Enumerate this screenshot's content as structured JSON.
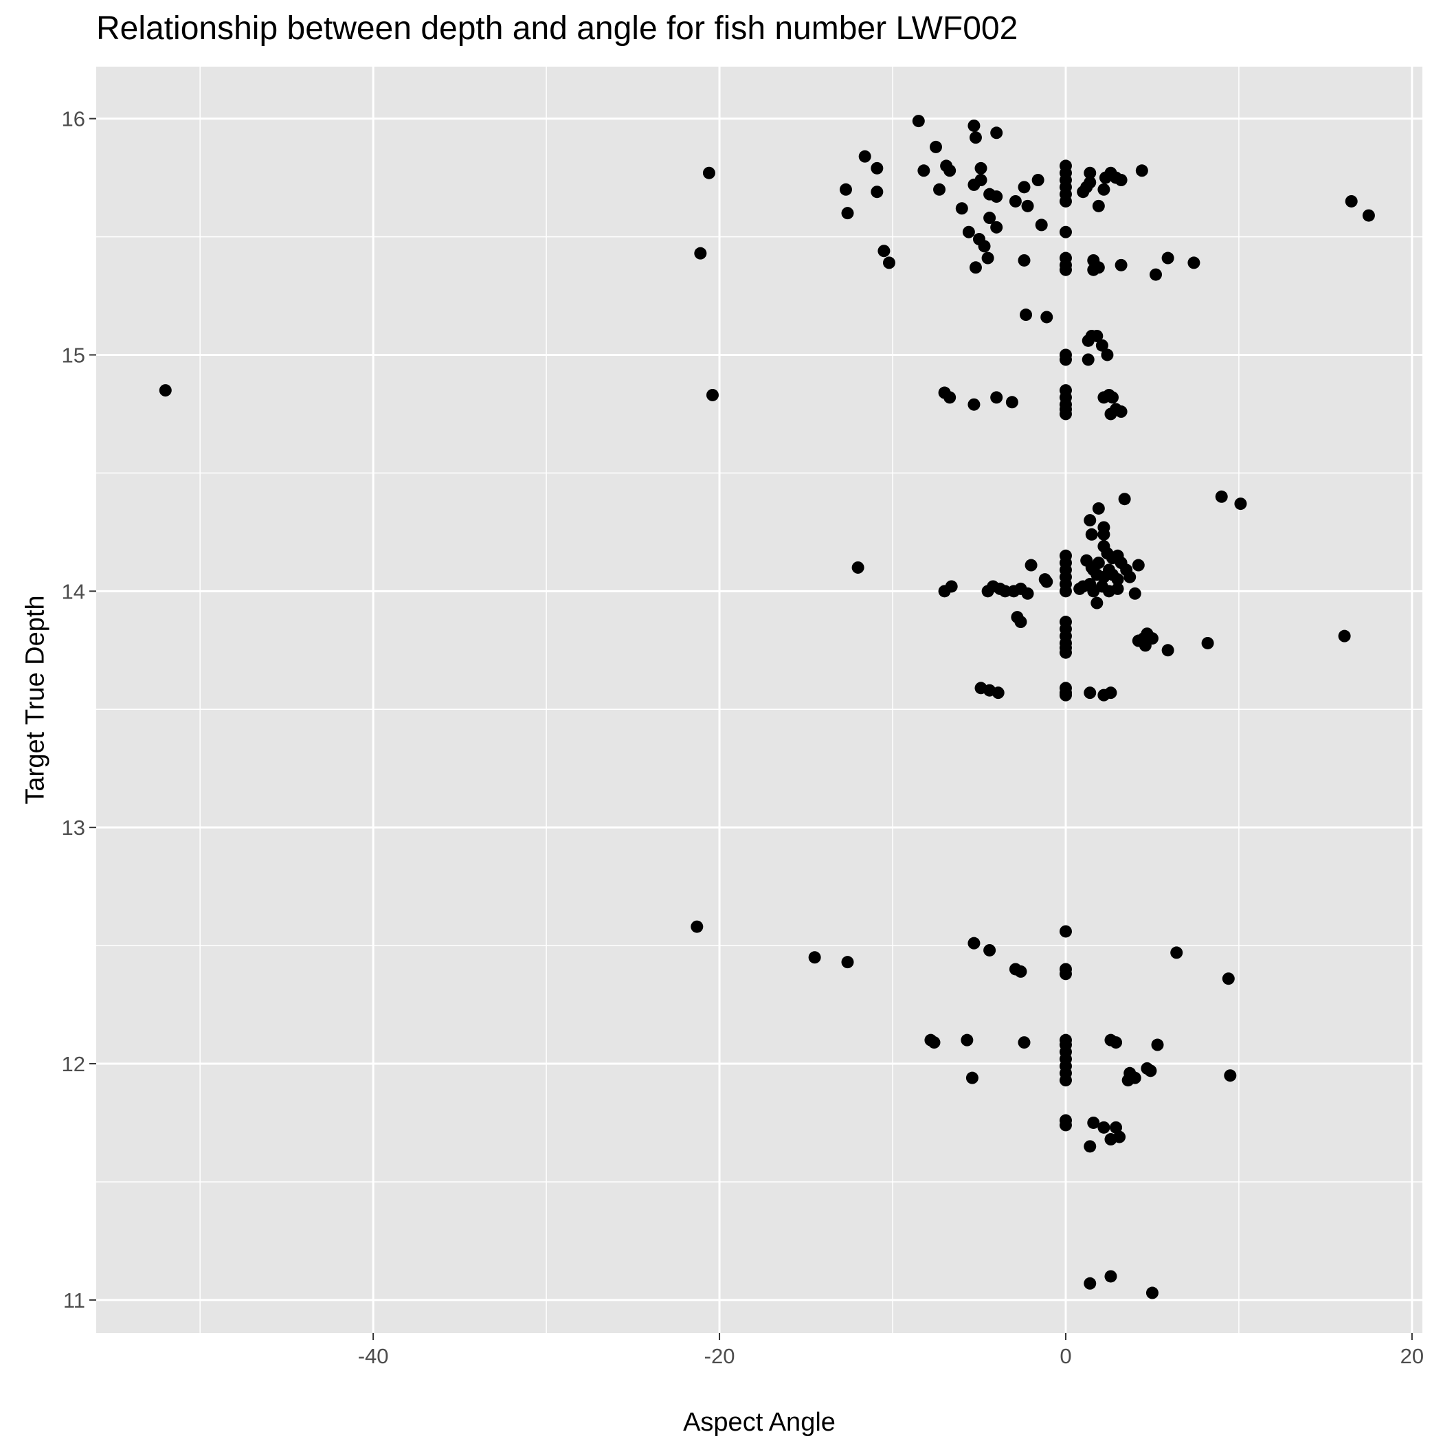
{
  "chart_data": {
    "type": "scatter",
    "title": "Relationship between depth and angle for fish number LWF002",
    "xlabel": "Aspect Angle",
    "ylabel": "Target True Depth",
    "xlim": [
      -56,
      20.6
    ],
    "ylim": [
      10.86,
      16.22
    ],
    "x_ticks": [
      "-40",
      "-20",
      "0",
      "20"
    ],
    "y_ticks": [
      "11",
      "12",
      "13",
      "14",
      "15",
      "16"
    ],
    "grid": true,
    "colors": {
      "panel": "#e5e5e5",
      "grid": "#ffffff",
      "point": "#000000"
    },
    "series": [
      {
        "points": [
          [
            -8.5,
            15.99
          ],
          [
            -5.3,
            15.97
          ],
          [
            -5.2,
            15.92
          ],
          [
            -4.0,
            15.94
          ],
          [
            -7.5,
            15.88
          ],
          [
            -11.6,
            15.84
          ],
          [
            -6.9,
            15.8
          ],
          [
            -6.7,
            15.78
          ],
          [
            -4.9,
            15.79
          ],
          [
            -8.2,
            15.78
          ],
          [
            -10.9,
            15.79
          ],
          [
            -20.6,
            15.77
          ],
          [
            -12.7,
            15.7
          ],
          [
            -10.9,
            15.69
          ],
          [
            -7.3,
            15.7
          ],
          [
            -5.3,
            15.72
          ],
          [
            -4.9,
            15.74
          ],
          [
            -4.4,
            15.68
          ],
          [
            -4.0,
            15.67
          ],
          [
            -2.4,
            15.71
          ],
          [
            -1.6,
            15.74
          ],
          [
            -2.9,
            15.65
          ],
          [
            -6.0,
            15.62
          ],
          [
            -2.2,
            15.63
          ],
          [
            -12.6,
            15.6
          ],
          [
            -4.4,
            15.58
          ],
          [
            -4.0,
            15.54
          ],
          [
            -1.4,
            15.55
          ],
          [
            -5.6,
            15.52
          ],
          [
            -5.0,
            15.49
          ],
          [
            -4.7,
            15.46
          ],
          [
            -4.5,
            15.41
          ],
          [
            -10.5,
            15.44
          ],
          [
            -10.2,
            15.39
          ],
          [
            -21.1,
            15.43
          ],
          [
            -5.2,
            15.37
          ],
          [
            -2.4,
            15.4
          ],
          [
            0,
            15.8
          ],
          [
            0,
            15.77
          ],
          [
            0,
            15.74
          ],
          [
            0,
            15.71
          ],
          [
            0,
            15.68
          ],
          [
            0,
            15.65
          ],
          [
            0,
            15.52
          ],
          [
            0,
            15.41
          ],
          [
            0,
            15.38
          ],
          [
            0,
            15.36
          ],
          [
            1.0,
            15.69
          ],
          [
            1.2,
            15.71
          ],
          [
            1.4,
            15.73
          ],
          [
            1.4,
            15.77
          ],
          [
            2.2,
            15.7
          ],
          [
            1.9,
            15.63
          ],
          [
            2.3,
            15.75
          ],
          [
            2.6,
            15.77
          ],
          [
            2.9,
            15.75
          ],
          [
            3.2,
            15.74
          ],
          [
            4.4,
            15.78
          ],
          [
            1.6,
            15.36
          ],
          [
            1.6,
            15.4
          ],
          [
            1.9,
            15.37
          ],
          [
            3.2,
            15.38
          ],
          [
            5.2,
            15.34
          ],
          [
            5.9,
            15.41
          ],
          [
            7.4,
            15.39
          ],
          [
            16.5,
            15.65
          ],
          [
            17.5,
            15.59
          ],
          [
            -2.3,
            15.17
          ],
          [
            -1.1,
            15.16
          ],
          [
            1.3,
            15.06
          ],
          [
            1.5,
            15.08
          ],
          [
            1.8,
            15.08
          ],
          [
            2.1,
            15.04
          ],
          [
            2.4,
            15.0
          ],
          [
            0,
            15.0
          ],
          [
            0,
            14.98
          ],
          [
            1.3,
            14.98
          ],
          [
            -52.0,
            14.85
          ],
          [
            -20.4,
            14.83
          ],
          [
            -7.0,
            14.84
          ],
          [
            -6.7,
            14.82
          ],
          [
            -5.3,
            14.79
          ],
          [
            -4.0,
            14.82
          ],
          [
            -3.1,
            14.8
          ],
          [
            0,
            14.85
          ],
          [
            0,
            14.82
          ],
          [
            0,
            14.79
          ],
          [
            0,
            14.77
          ],
          [
            0,
            14.75
          ],
          [
            2.2,
            14.82
          ],
          [
            2.5,
            14.83
          ],
          [
            2.7,
            14.82
          ],
          [
            2.6,
            14.75
          ],
          [
            2.9,
            14.77
          ],
          [
            3.2,
            14.76
          ],
          [
            3.4,
            14.39
          ],
          [
            9.0,
            14.4
          ],
          [
            10.1,
            14.37
          ],
          [
            1.9,
            14.35
          ],
          [
            1.4,
            14.3
          ],
          [
            2.2,
            14.27
          ],
          [
            2.2,
            14.24
          ],
          [
            1.5,
            14.24
          ],
          [
            2.2,
            14.19
          ],
          [
            2.4,
            14.16
          ],
          [
            2.7,
            14.14
          ],
          [
            3.0,
            14.15
          ],
          [
            3.2,
            14.12
          ],
          [
            3.5,
            14.09
          ],
          [
            4.2,
            14.11
          ],
          [
            3.7,
            14.06
          ],
          [
            1.9,
            14.12
          ],
          [
            1.6,
            14.09
          ],
          [
            1.2,
            14.13
          ],
          [
            1.5,
            14.1
          ],
          [
            1.8,
            14.07
          ],
          [
            2.2,
            14.06
          ],
          [
            2.5,
            14.09
          ],
          [
            2.7,
            14.07
          ],
          [
            3.0,
            14.05
          ],
          [
            1.4,
            14.03
          ],
          [
            1.0,
            14.02
          ],
          [
            0.8,
            14.01
          ],
          [
            1.6,
            14.0
          ],
          [
            2.1,
            14.02
          ],
          [
            2.5,
            14.0
          ],
          [
            3.0,
            14.01
          ],
          [
            4.0,
            13.99
          ],
          [
            1.8,
            13.95
          ],
          [
            -12.0,
            14.1
          ],
          [
            -7.0,
            14.0
          ],
          [
            -6.6,
            14.02
          ],
          [
            -4.5,
            14.0
          ],
          [
            -4.2,
            14.02
          ],
          [
            -3.8,
            14.01
          ],
          [
            -3.5,
            14.0
          ],
          [
            -3.0,
            14.0
          ],
          [
            -2.6,
            14.01
          ],
          [
            -2.2,
            13.99
          ],
          [
            -2.0,
            14.11
          ],
          [
            -1.2,
            14.05
          ],
          [
            -1.1,
            14.04
          ],
          [
            -2.8,
            13.89
          ],
          [
            -2.6,
            13.87
          ],
          [
            0,
            14.15
          ],
          [
            0,
            14.12
          ],
          [
            0,
            14.09
          ],
          [
            0,
            14.06
          ],
          [
            0,
            14.03
          ],
          [
            0,
            14.0
          ],
          [
            0,
            13.87
          ],
          [
            0,
            13.84
          ],
          [
            0,
            13.81
          ],
          [
            0,
            13.78
          ],
          [
            0,
            13.76
          ],
          [
            0,
            13.74
          ],
          [
            4.2,
            13.79
          ],
          [
            4.5,
            13.8
          ],
          [
            4.7,
            13.82
          ],
          [
            5.0,
            13.8
          ],
          [
            4.6,
            13.77
          ],
          [
            5.9,
            13.75
          ],
          [
            8.2,
            13.78
          ],
          [
            16.1,
            13.81
          ],
          [
            -4.9,
            13.59
          ],
          [
            -4.4,
            13.58
          ],
          [
            -3.9,
            13.57
          ],
          [
            0,
            13.59
          ],
          [
            0,
            13.57
          ],
          [
            0,
            13.56
          ],
          [
            1.4,
            13.57
          ],
          [
            2.2,
            13.56
          ],
          [
            2.6,
            13.57
          ],
          [
            -21.3,
            12.58
          ],
          [
            -5.3,
            12.51
          ],
          [
            -4.4,
            12.48
          ],
          [
            0,
            12.56
          ],
          [
            6.4,
            12.47
          ],
          [
            -14.5,
            12.45
          ],
          [
            -12.6,
            12.43
          ],
          [
            -2.9,
            12.4
          ],
          [
            -2.6,
            12.39
          ],
          [
            0,
            12.4
          ],
          [
            0,
            12.38
          ],
          [
            9.4,
            12.36
          ],
          [
            -7.8,
            12.1
          ],
          [
            -7.6,
            12.09
          ],
          [
            -5.7,
            12.1
          ],
          [
            -2.4,
            12.09
          ],
          [
            0,
            12.1
          ],
          [
            0,
            12.08
          ],
          [
            0,
            12.05
          ],
          [
            0,
            12.02
          ],
          [
            0,
            11.99
          ],
          [
            0,
            11.96
          ],
          [
            0,
            11.93
          ],
          [
            2.6,
            12.1
          ],
          [
            2.9,
            12.09
          ],
          [
            5.3,
            12.08
          ],
          [
            4.7,
            11.98
          ],
          [
            4.9,
            11.97
          ],
          [
            3.7,
            11.96
          ],
          [
            4.0,
            11.94
          ],
          [
            3.6,
            11.93
          ],
          [
            -5.4,
            11.94
          ],
          [
            9.5,
            11.95
          ],
          [
            0,
            11.76
          ],
          [
            0,
            11.74
          ],
          [
            1.6,
            11.75
          ],
          [
            2.2,
            11.73
          ],
          [
            2.9,
            11.73
          ],
          [
            2.6,
            11.68
          ],
          [
            3.1,
            11.69
          ],
          [
            1.4,
            11.65
          ],
          [
            1.4,
            11.07
          ],
          [
            2.6,
            11.1
          ],
          [
            5.0,
            11.03
          ]
        ]
      }
    ]
  }
}
